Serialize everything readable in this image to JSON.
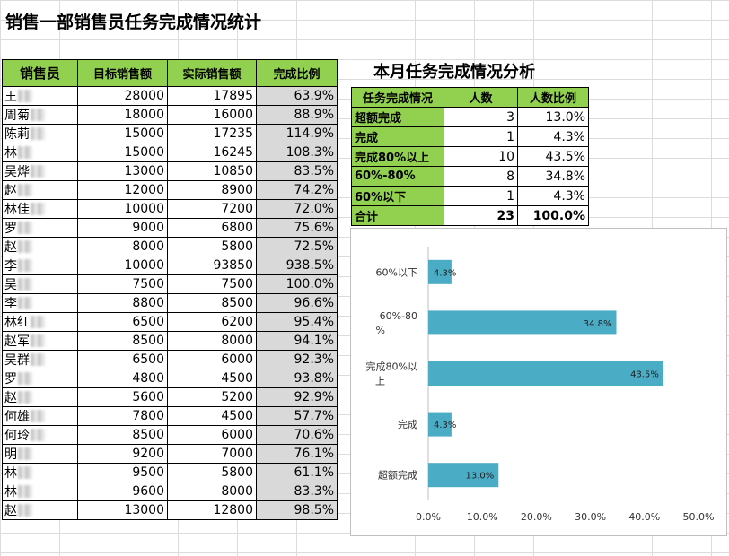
{
  "sheet": {
    "title": "销售一部销售员任务完成情况统计",
    "headers": [
      "销售员",
      "目标销售额",
      "实际销售额",
      "完成比例"
    ],
    "rows": [
      {
        "name": "王",
        "target": "28000",
        "actual": "17895",
        "rate": "63.9%"
      },
      {
        "name": "周菊",
        "target": "18000",
        "actual": "16000",
        "rate": "88.9%"
      },
      {
        "name": "陈莉",
        "target": "15000",
        "actual": "17235",
        "rate": "114.9%"
      },
      {
        "name": "林",
        "target": "15000",
        "actual": "16245",
        "rate": "108.3%"
      },
      {
        "name": "吴烨",
        "target": "13000",
        "actual": "10850",
        "rate": "83.5%"
      },
      {
        "name": "赵",
        "target": "12000",
        "actual": "8900",
        "rate": "74.2%"
      },
      {
        "name": "林佳",
        "target": "10000",
        "actual": "7200",
        "rate": "72.0%"
      },
      {
        "name": "罗",
        "target": "9000",
        "actual": "6800",
        "rate": "75.6%"
      },
      {
        "name": "赵",
        "target": "8000",
        "actual": "5800",
        "rate": "72.5%"
      },
      {
        "name": "李",
        "target": "10000",
        "actual": "93850",
        "rate": "938.5%"
      },
      {
        "name": "吴",
        "target": "7500",
        "actual": "7500",
        "rate": "100.0%"
      },
      {
        "name": "李",
        "target": "8800",
        "actual": "8500",
        "rate": "96.6%"
      },
      {
        "name": "林红",
        "target": "6500",
        "actual": "6200",
        "rate": "95.4%"
      },
      {
        "name": "赵军",
        "target": "8500",
        "actual": "8000",
        "rate": "94.1%"
      },
      {
        "name": "吴群",
        "target": "6500",
        "actual": "6000",
        "rate": "92.3%"
      },
      {
        "name": "罗",
        "target": "4800",
        "actual": "4500",
        "rate": "93.8%"
      },
      {
        "name": "赵",
        "target": "5600",
        "actual": "5200",
        "rate": "92.9%"
      },
      {
        "name": "何雄",
        "target": "7800",
        "actual": "4500",
        "rate": "57.7%"
      },
      {
        "name": "何玲",
        "target": "8500",
        "actual": "6000",
        "rate": "70.6%"
      },
      {
        "name": "明",
        "target": "9200",
        "actual": "7000",
        "rate": "76.1%"
      },
      {
        "name": "林",
        "target": "9500",
        "actual": "5800",
        "rate": "61.1%"
      },
      {
        "name": "林",
        "target": "9600",
        "actual": "8000",
        "rate": "83.3%"
      },
      {
        "name": "赵",
        "target": "13000",
        "actual": "12800",
        "rate": "98.5%"
      }
    ]
  },
  "analysis": {
    "title": "本月任务完成情况分析",
    "headers": [
      "任务完成情况",
      "人数",
      "人数比例"
    ],
    "rows": [
      {
        "cat": "超额完成",
        "count": "3",
        "pct": "13.0%"
      },
      {
        "cat": "完成",
        "count": "1",
        "pct": "4.3%"
      },
      {
        "cat": "完成80%以上",
        "count": "10",
        "pct": "43.5%"
      },
      {
        "cat": "60%-80%",
        "count": "8",
        "pct": "34.8%"
      },
      {
        "cat": "60%以下",
        "count": "1",
        "pct": "4.3%"
      }
    ],
    "total": {
      "cat": "合计",
      "count": "23",
      "pct": "100.0%"
    }
  },
  "chart_data": {
    "type": "bar",
    "orientation": "horizontal",
    "categories": [
      "60%以下",
      "60%-80%",
      "完成80%以上",
      "完成",
      "超额完成"
    ],
    "values": [
      4.3,
      34.8,
      43.5,
      4.3,
      13.0
    ],
    "data_labels": [
      "4.3%",
      "34.8%",
      "43.5%",
      "4.3%",
      "13.0%"
    ],
    "xlim": [
      0,
      50
    ],
    "xticks": [
      "0.0%",
      "10.0%",
      "20.0%",
      "30.0%",
      "40.0%",
      "50.0%"
    ],
    "bar_color": "#4bacc6",
    "grid": false,
    "legend": "none"
  },
  "colors": {
    "header_green": "#92d050",
    "rate_gray": "#d9d9d9",
    "bar_blue": "#4bacc6"
  }
}
